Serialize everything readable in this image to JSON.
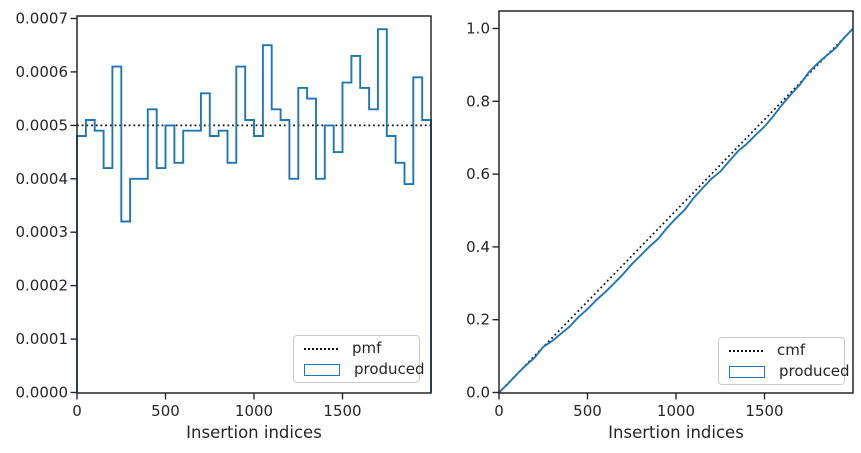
{
  "style": {
    "background": "#ffffff",
    "produced_color": "#1f77b4",
    "reference_color": "#111111",
    "axis_color": "#262626",
    "text_color": "#262626",
    "legend_border_color": "#cccccc"
  },
  "chart_data": [
    {
      "id": "pmf-plot",
      "type": "bar",
      "style": "step-histogram-outline",
      "title": "",
      "xlabel": "Insertion indices",
      "ylabel": "",
      "xlim": [
        0,
        2000
      ],
      "ylim": [
        0,
        0.000704
      ],
      "grid": false,
      "legend_position": "lower right",
      "xticks": {
        "values": [
          0,
          500,
          1000,
          1500
        ],
        "labels": [
          "0",
          "500",
          "1000",
          "1500"
        ]
      },
      "yticks": {
        "values": [
          0,
          0.0001,
          0.0002,
          0.0003,
          0.0004,
          0.0005,
          0.0006,
          0.0007
        ],
        "labels": [
          "0.0000",
          "0.0001",
          "0.0002",
          "0.0003",
          "0.0004",
          "0.0005",
          "0.0006",
          "0.0007"
        ]
      },
      "bin_width": 50,
      "total_samples": 2000,
      "series_name": "produced",
      "bin_counts": [
        48,
        51,
        49,
        42,
        61,
        32,
        40,
        40,
        53,
        42,
        50,
        43,
        49,
        49,
        56,
        48,
        49,
        43,
        61,
        51,
        48,
        65,
        53,
        51,
        40,
        57,
        55,
        40,
        50,
        45,
        58,
        63,
        57,
        53,
        68,
        48,
        43,
        39,
        59,
        51
      ],
      "densities": [
        0.00048,
        0.00051,
        0.00049,
        0.00042,
        0.00061,
        0.00032,
        0.0004,
        0.0004,
        0.00053,
        0.00042,
        0.0005,
        0.00043,
        0.00049,
        0.00049,
        0.00056,
        0.00048,
        0.00049,
        0.00043,
        0.00061,
        0.00051,
        0.00048,
        0.00065,
        0.00053,
        0.00051,
        0.0004,
        0.00057,
        0.00055,
        0.0004,
        0.0005,
        0.00045,
        0.00058,
        0.00063,
        0.00057,
        0.00053,
        0.00068,
        0.00048,
        0.00043,
        0.00039,
        0.00059,
        0.00051
      ],
      "reference": {
        "name": "pmf",
        "style": "dotted",
        "value": 0.0005
      }
    },
    {
      "id": "cmf-plot",
      "type": "line",
      "style": "cumulative",
      "title": "",
      "xlabel": "Insertion indices",
      "ylabel": "",
      "xlim": [
        0,
        2000
      ],
      "ylim": [
        0,
        1.047
      ],
      "grid": false,
      "legend_position": "lower right",
      "xticks": {
        "values": [
          0,
          500,
          1000,
          1500
        ],
        "labels": [
          "0",
          "500",
          "1000",
          "1500"
        ]
      },
      "yticks": {
        "values": [
          0,
          0.2,
          0.4,
          0.6,
          0.8,
          1.0
        ],
        "labels": [
          "0.0",
          "0.2",
          "0.4",
          "0.6",
          "0.8",
          "1.0"
        ]
      },
      "x_step": 50,
      "series_name": "produced",
      "y": [
        0,
        0.024,
        0.0495,
        0.074,
        0.095,
        0.1255,
        0.1415,
        0.1615,
        0.1815,
        0.208,
        0.229,
        0.254,
        0.2755,
        0.3,
        0.3245,
        0.3525,
        0.3765,
        0.401,
        0.4225,
        0.453,
        0.4785,
        0.5025,
        0.535,
        0.5615,
        0.587,
        0.607,
        0.6355,
        0.663,
        0.683,
        0.708,
        0.7305,
        0.7595,
        0.791,
        0.8195,
        0.846,
        0.88,
        0.904,
        0.9255,
        0.945,
        0.9745,
        1.0
      ],
      "reference": {
        "name": "cmf",
        "style": "dotted",
        "from": [
          0,
          0
        ],
        "to": [
          2000,
          1.0
        ]
      }
    }
  ]
}
